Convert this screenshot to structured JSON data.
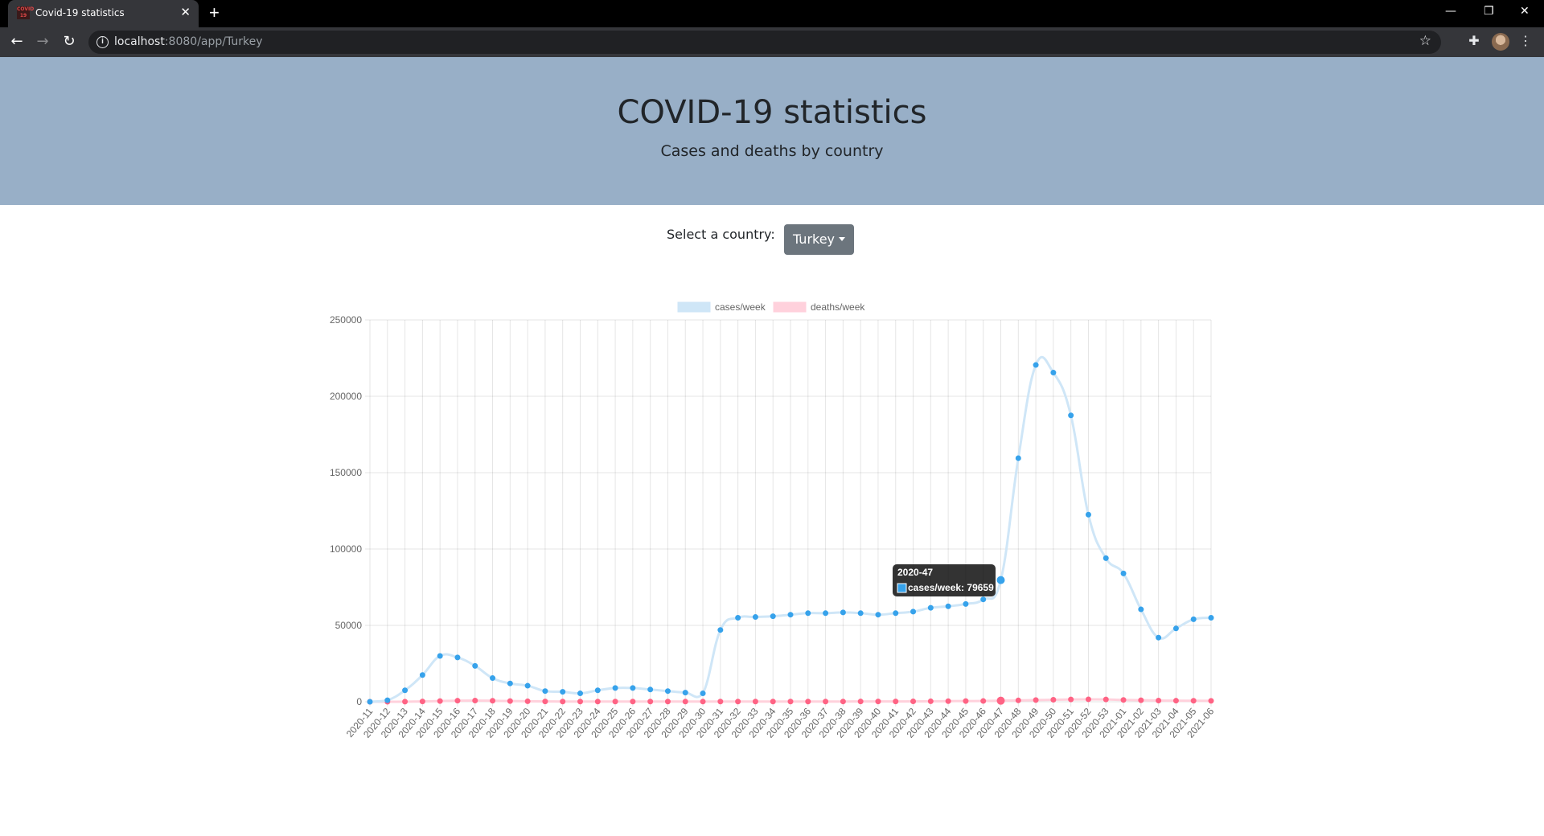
{
  "browser": {
    "tab_title": "Covid-19 statistics",
    "favicon_text": "COVID 19",
    "url_host": "localhost",
    "url_rest": ":8080/app/Turkey",
    "icons": [
      "back-arrow-icon",
      "forward-arrow-icon",
      "reload-icon",
      "info-icon",
      "star-icon",
      "extensions-icon",
      "menu-icon"
    ]
  },
  "header": {
    "title": "COVID-19 statistics",
    "subtitle": "Cases and deaths by country"
  },
  "selector": {
    "label": "Select a country:",
    "selected": "Turkey"
  },
  "colors": {
    "cases_line": "#cfe6f7",
    "cases_point": "#36a2eb",
    "deaths_line": "#ffd1dc",
    "deaths_point": "#ff6384",
    "header_bg": "#98afc7",
    "button_bg": "#6c757d"
  },
  "tooltip": {
    "title": "2020-47",
    "label": "cases/week: 79659"
  },
  "chart_data": {
    "type": "line",
    "categories": [
      "2020-11",
      "2020-12",
      "2020-13",
      "2020-14",
      "2020-15",
      "2020-16",
      "2020-17",
      "2020-18",
      "2020-19",
      "2020-20",
      "2020-21",
      "2020-22",
      "2020-23",
      "2020-24",
      "2020-25",
      "2020-26",
      "2020-27",
      "2020-28",
      "2020-29",
      "2020-30",
      "2020-31",
      "2020-32",
      "2020-33",
      "2020-34",
      "2020-35",
      "2020-36",
      "2020-37",
      "2020-38",
      "2020-39",
      "2020-40",
      "2020-41",
      "2020-42",
      "2020-43",
      "2020-44",
      "2020-45",
      "2020-46",
      "2020-47",
      "2020-48",
      "2020-49",
      "2020-50",
      "2020-51",
      "2020-52",
      "2020-53",
      "2021-01",
      "2021-02",
      "2021-03",
      "2021-04",
      "2021-05",
      "2021-06"
    ],
    "series": [
      {
        "name": "cases/week",
        "values": [
          5,
          1000,
          7500,
          17500,
          30000,
          29000,
          23500,
          15500,
          12000,
          10500,
          7000,
          6500,
          5500,
          7500,
          9000,
          9000,
          8000,
          7000,
          6000,
          5500,
          47000,
          55000,
          55500,
          56000,
          57000,
          58000,
          58000,
          58500,
          58000,
          57000,
          58000,
          59000,
          61500,
          62500,
          64000,
          67000,
          79659,
          159500,
          220500,
          215500,
          187500,
          122500,
          94000,
          84000,
          60500,
          42000,
          48000,
          54000,
          55000
        ]
      },
      {
        "name": "deaths/week",
        "values": [
          0,
          5,
          50,
          200,
          450,
          700,
          800,
          650,
          450,
          300,
          200,
          150,
          120,
          110,
          120,
          130,
          130,
          120,
          110,
          100,
          120,
          130,
          130,
          130,
          130,
          140,
          150,
          160,
          170,
          180,
          200,
          250,
          300,
          400,
          450,
          500,
          700,
          900,
          1100,
          1300,
          1500,
          1600,
          1500,
          1200,
          1000,
          800,
          700,
          650,
          600
        ]
      }
    ],
    "ylim": [
      0,
      250000
    ],
    "yticks": [
      0,
      50000,
      100000,
      150000,
      200000,
      250000
    ],
    "grid": true,
    "legend_position": "top",
    "tooltip_category": "2020-47"
  }
}
